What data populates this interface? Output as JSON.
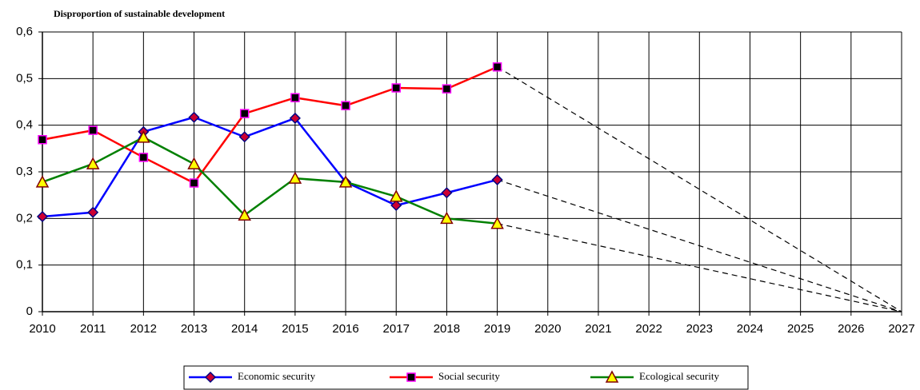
{
  "chart_data": {
    "type": "line",
    "title": "Disproportion of sustainable development",
    "x": [
      2010,
      2011,
      2012,
      2013,
      2014,
      2015,
      2016,
      2017,
      2018,
      2019
    ],
    "series": [
      {
        "name": "Economic security",
        "color": "#0000ff",
        "marker": "diamond",
        "marker_fill": "#cc0033",
        "marker_stroke": "#000080",
        "values": [
          0.204,
          0.213,
          0.386,
          0.417,
          0.375,
          0.415,
          0.278,
          0.228,
          0.255,
          0.283
        ]
      },
      {
        "name": "Social security",
        "color": "#ff0000",
        "marker": "square",
        "marker_fill": "#000000",
        "marker_stroke": "#ff00ff",
        "values": [
          0.369,
          0.389,
          0.331,
          0.276,
          0.425,
          0.459,
          0.442,
          0.48,
          0.478,
          0.525
        ]
      },
      {
        "name": "Ecological security",
        "color": "#008000",
        "marker": "triangle",
        "marker_fill": "#ffff00",
        "marker_stroke": "#800000",
        "values": [
          0.278,
          0.317,
          0.374,
          0.317,
          0.207,
          0.286,
          0.278,
          0.247,
          0.2,
          0.189
        ]
      }
    ],
    "forecast_target": {
      "x": 2027,
      "y": 0
    },
    "xlim": [
      2010,
      2027
    ],
    "xticks": [
      2010,
      2011,
      2012,
      2013,
      2014,
      2015,
      2016,
      2017,
      2018,
      2019,
      2020,
      2021,
      2022,
      2023,
      2024,
      2025,
      2026,
      2027
    ],
    "ylim": [
      0,
      0.6
    ],
    "yticks": [
      0,
      {
        "value": 0.1,
        "label": "0,1"
      },
      {
        "value": 0.2,
        "label": "0,2"
      },
      {
        "value": 0.3,
        "label": "0,3"
      },
      {
        "value": 0.4,
        "label": "0,4"
      },
      {
        "value": 0.5,
        "label": "0,5"
      },
      {
        "value": 0.6,
        "label": "0,6"
      }
    ],
    "grid": true,
    "legend": "bottom"
  }
}
